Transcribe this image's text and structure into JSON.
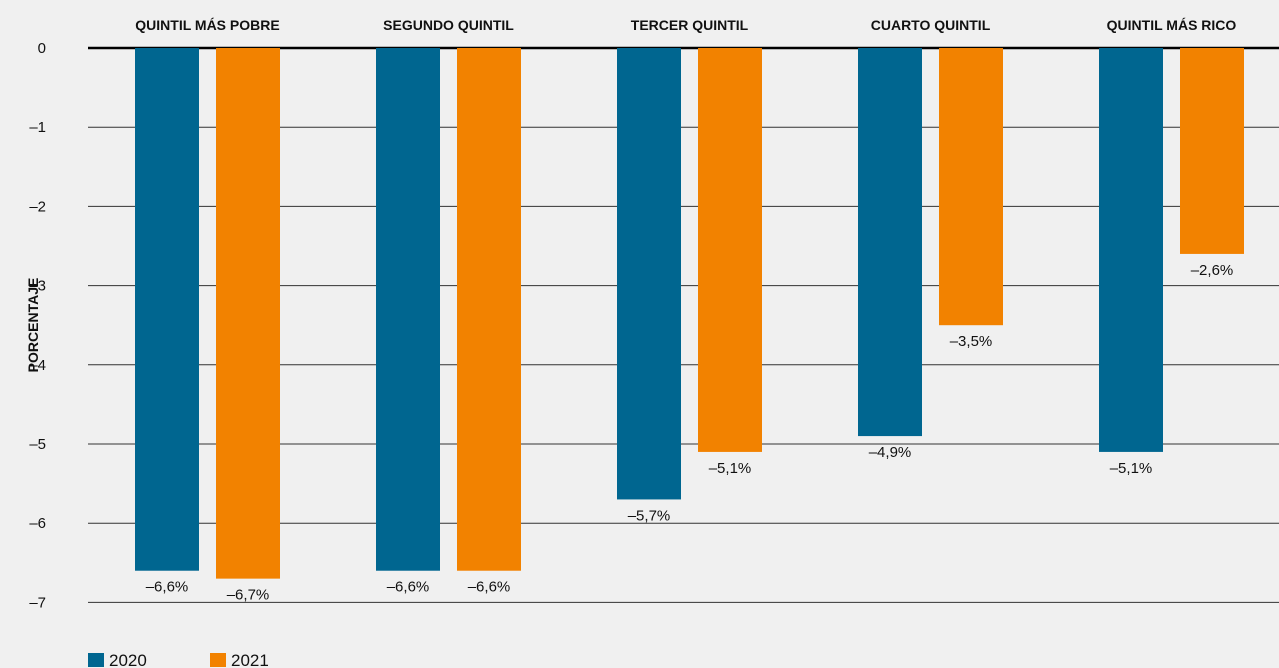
{
  "colors": {
    "2020": "#006690",
    "2021": "#f28200",
    "grid": "#333333",
    "zero": "#000000"
  },
  "chart_data": {
    "type": "bar",
    "ylabel": "PORCENTAJE",
    "ylim": [
      -7,
      0
    ],
    "yticks": [
      "0",
      "–1",
      "–2",
      "–3",
      "–4",
      "–5",
      "–6",
      "–7"
    ],
    "categories": [
      "QUINTIL MÁS POBRE",
      "SEGUNDO QUINTIL",
      "TERCER QUINTIL",
      "CUARTO QUINTIL",
      "QUINTIL MÁS RICO"
    ],
    "series": [
      {
        "name": "2020",
        "values": [
          -6.6,
          -6.6,
          -5.7,
          -4.9,
          -5.1
        ],
        "labels": [
          "–6,6%",
          "–6,6%",
          "–5,7%",
          "–4,9%",
          "–5,1%"
        ]
      },
      {
        "name": "2021",
        "values": [
          -6.7,
          -6.6,
          -5.1,
          -3.5,
          -2.6
        ],
        "labels": [
          "–6,7%",
          "–6,6%",
          "–5,1%",
          "–3,5%",
          "–2,6%"
        ]
      }
    ],
    "grid": true,
    "legend": "bottom-left"
  }
}
